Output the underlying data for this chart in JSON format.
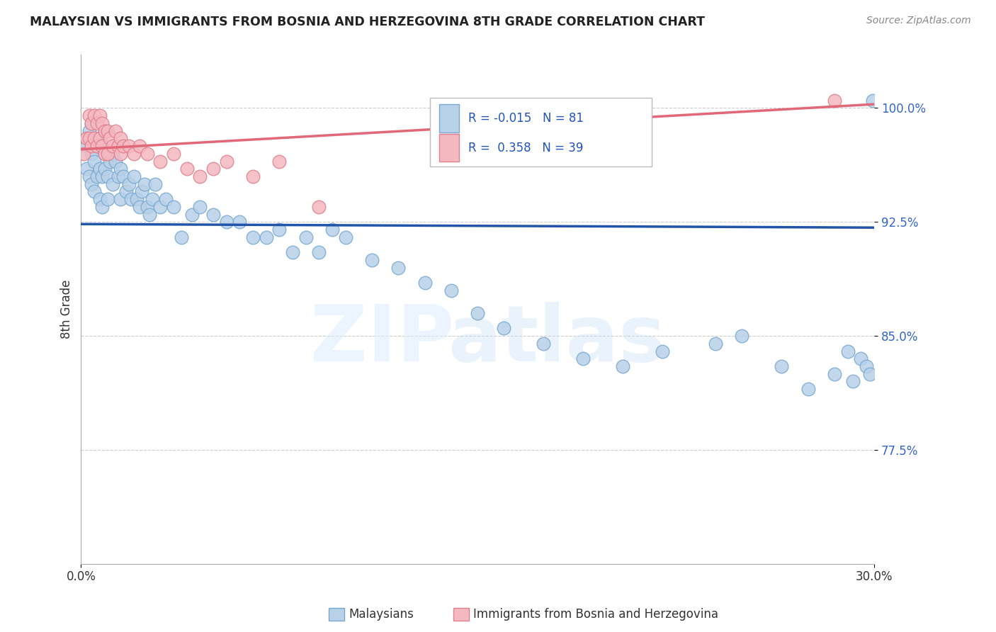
{
  "title": "MALAYSIAN VS IMMIGRANTS FROM BOSNIA AND HERZEGOVINA 8TH GRADE CORRELATION CHART",
  "source": "Source: ZipAtlas.com",
  "ylabel": "8th Grade",
  "yticks": [
    77.5,
    85.0,
    92.5,
    100.0
  ],
  "xlim": [
    0.0,
    30.0
  ],
  "ylim": [
    70.0,
    103.5
  ],
  "blue_R": -0.015,
  "blue_N": 81,
  "pink_R": 0.358,
  "pink_N": 39,
  "blue_color": "#b8d0e8",
  "blue_edge": "#7aaad0",
  "pink_color": "#f4b8c0",
  "pink_edge": "#e08090",
  "blue_line_color": "#2255aa",
  "pink_line_color": "#e06878",
  "legend_label_blue": "Malaysians",
  "legend_label_pink": "Immigrants from Bosnia and Herzegovina",
  "blue_x": [
    0.2,
    0.2,
    0.3,
    0.3,
    0.4,
    0.4,
    0.4,
    0.5,
    0.5,
    0.5,
    0.6,
    0.6,
    0.7,
    0.7,
    0.7,
    0.8,
    0.8,
    0.8,
    0.9,
    0.9,
    1.0,
    1.0,
    1.0,
    1.1,
    1.2,
    1.2,
    1.3,
    1.4,
    1.5,
    1.5,
    1.6,
    1.7,
    1.8,
    1.9,
    2.0,
    2.1,
    2.2,
    2.3,
    2.4,
    2.5,
    2.6,
    2.7,
    2.8,
    3.0,
    3.2,
    3.5,
    3.8,
    4.2,
    4.5,
    5.0,
    5.5,
    6.0,
    6.5,
    7.0,
    7.5,
    8.0,
    8.5,
    9.0,
    9.5,
    10.0,
    11.0,
    12.0,
    13.0,
    14.0,
    15.0,
    16.0,
    17.5,
    19.0,
    20.5,
    22.0,
    24.0,
    25.0,
    26.5,
    27.5,
    28.5,
    29.0,
    29.2,
    29.5,
    29.7,
    29.85,
    29.95
  ],
  "blue_y": [
    97.5,
    96.0,
    98.5,
    95.5,
    99.0,
    97.0,
    95.0,
    98.0,
    96.5,
    94.5,
    97.5,
    95.5,
    98.0,
    96.0,
    94.0,
    97.5,
    95.5,
    93.5,
    98.5,
    96.0,
    97.0,
    95.5,
    94.0,
    96.5,
    97.0,
    95.0,
    96.5,
    95.5,
    96.0,
    94.0,
    95.5,
    94.5,
    95.0,
    94.0,
    95.5,
    94.0,
    93.5,
    94.5,
    95.0,
    93.5,
    93.0,
    94.0,
    95.0,
    93.5,
    94.0,
    93.5,
    91.5,
    93.0,
    93.5,
    93.0,
    92.5,
    92.5,
    91.5,
    91.5,
    92.0,
    90.5,
    91.5,
    90.5,
    92.0,
    91.5,
    90.0,
    89.5,
    88.5,
    88.0,
    86.5,
    85.5,
    84.5,
    83.5,
    83.0,
    84.0,
    84.5,
    85.0,
    83.0,
    81.5,
    82.5,
    84.0,
    82.0,
    83.5,
    83.0,
    82.5,
    100.5
  ],
  "pink_x": [
    0.1,
    0.2,
    0.3,
    0.3,
    0.4,
    0.4,
    0.5,
    0.5,
    0.6,
    0.6,
    0.7,
    0.7,
    0.8,
    0.8,
    0.9,
    0.9,
    1.0,
    1.0,
    1.1,
    1.2,
    1.3,
    1.4,
    1.5,
    1.5,
    1.6,
    1.8,
    2.0,
    2.2,
    2.5,
    3.0,
    3.5,
    4.0,
    4.5,
    5.0,
    5.5,
    6.5,
    7.5,
    9.0,
    28.5
  ],
  "pink_y": [
    97.0,
    98.0,
    99.5,
    98.0,
    99.0,
    97.5,
    99.5,
    98.0,
    99.0,
    97.5,
    99.5,
    98.0,
    99.0,
    97.5,
    98.5,
    97.0,
    98.5,
    97.0,
    98.0,
    97.5,
    98.5,
    97.5,
    98.0,
    97.0,
    97.5,
    97.5,
    97.0,
    97.5,
    97.0,
    96.5,
    97.0,
    96.0,
    95.5,
    96.0,
    96.5,
    95.5,
    96.5,
    93.5,
    100.5
  ]
}
